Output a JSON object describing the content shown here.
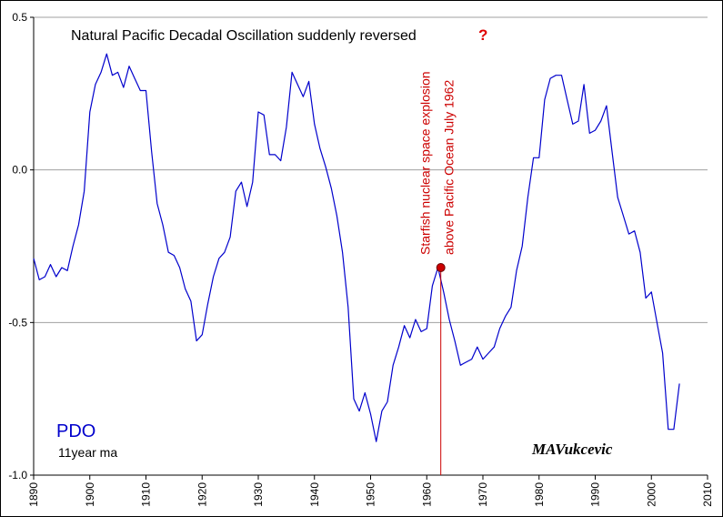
{
  "chart_data": {
    "type": "line",
    "title": "Natural Pacific Decadal Oscillation suddenly reversed",
    "title_mark": "?",
    "series_label": "PDO",
    "series_note": "11year ma",
    "signature": "MAVukcevic",
    "annotation": {
      "line1": "Starfish nuclear space explosion",
      "line2": "above Pacific Ocean July 1962",
      "year": 1962.5,
      "value": -0.32
    },
    "xlim": [
      1890,
      2010
    ],
    "ylim": [
      -1.0,
      0.5
    ],
    "x_ticks": [
      "1890",
      "1900",
      "1910",
      "1920",
      "1930",
      "1940",
      "1950",
      "1960",
      "1970",
      "1980",
      "1990",
      "2000",
      "2010"
    ],
    "y_ticks": [
      "0.5",
      "0.0",
      "-0.5",
      "-1.0"
    ],
    "grid": true,
    "line_color": "#0000cc",
    "marker_color": "#cc0000",
    "x": [
      1890,
      1891,
      1892,
      1893,
      1894,
      1895,
      1896,
      1897,
      1898,
      1899,
      1900,
      1901,
      1902,
      1903,
      1904,
      1905,
      1906,
      1907,
      1908,
      1909,
      1910,
      1911,
      1912,
      1913,
      1914,
      1915,
      1916,
      1917,
      1918,
      1919,
      1920,
      1921,
      1922,
      1923,
      1924,
      1925,
      1926,
      1927,
      1928,
      1929,
      1930,
      1931,
      1932,
      1933,
      1934,
      1935,
      1936,
      1937,
      1938,
      1939,
      1940,
      1941,
      1942,
      1943,
      1944,
      1945,
      1946,
      1947,
      1948,
      1949,
      1950,
      1951,
      1952,
      1953,
      1954,
      1955,
      1956,
      1957,
      1958,
      1959,
      1960,
      1961,
      1962,
      1963,
      1964,
      1965,
      1966,
      1967,
      1968,
      1969,
      1970,
      1971,
      1972,
      1973,
      1974,
      1975,
      1976,
      1977,
      1978,
      1979,
      1980,
      1981,
      1982,
      1983,
      1984,
      1985,
      1986,
      1987,
      1988,
      1989,
      1990,
      1991,
      1992,
      1993,
      1994,
      1995,
      1996,
      1997,
      1998,
      1999,
      2000,
      2001,
      2002,
      2003,
      2004,
      2005
    ],
    "y": [
      -0.29,
      -0.36,
      -0.35,
      -0.31,
      -0.35,
      -0.32,
      -0.33,
      -0.25,
      -0.18,
      -0.07,
      0.19,
      0.28,
      0.32,
      0.38,
      0.31,
      0.32,
      0.27,
      0.34,
      0.3,
      0.26,
      0.26,
      0.06,
      -0.11,
      -0.18,
      -0.27,
      -0.28,
      -0.32,
      -0.39,
      -0.43,
      -0.56,
      -0.54,
      -0.44,
      -0.35,
      -0.29,
      -0.27,
      -0.22,
      -0.07,
      -0.04,
      -0.12,
      -0.04,
      0.19,
      0.18,
      0.05,
      0.05,
      0.03,
      0.14,
      0.32,
      0.28,
      0.24,
      0.29,
      0.15,
      0.07,
      0.01,
      -0.06,
      -0.15,
      -0.27,
      -0.45,
      -0.75,
      -0.79,
      -0.73,
      -0.8,
      -0.89,
      -0.79,
      -0.76,
      -0.64,
      -0.58,
      -0.51,
      -0.55,
      -0.49,
      -0.53,
      -0.52,
      -0.38,
      -0.32,
      -0.4,
      -0.49,
      -0.56,
      -0.64,
      -0.63,
      -0.62,
      -0.58,
      -0.62,
      -0.6,
      -0.58,
      -0.52,
      -0.48,
      -0.45,
      -0.33,
      -0.25,
      -0.09,
      0.04,
      0.04,
      0.23,
      0.3,
      0.31,
      0.31,
      0.23,
      0.15,
      0.16,
      0.28,
      0.12,
      0.13,
      0.16,
      0.21,
      0.06,
      -0.09,
      -0.15,
      -0.21,
      -0.2,
      -0.27,
      -0.42,
      -0.4,
      -0.5,
      -0.6,
      -0.85,
      -0.85,
      -0.7
    ]
  }
}
